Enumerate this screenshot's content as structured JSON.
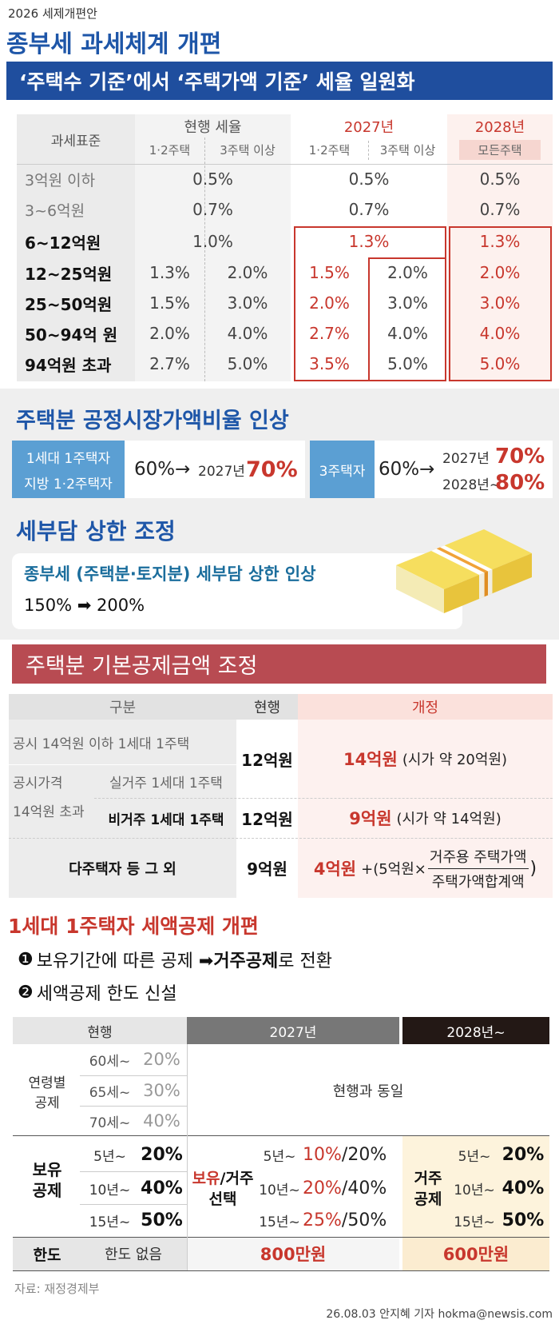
{
  "header": {
    "kicker": "2026 세제개편안",
    "title": "종부세 과세체계 개편"
  },
  "rate_table": {
    "banner": "‘주택수 기준’에서 ‘주택가액 기준’ 세율 일원화",
    "headers": [
      "과세표준",
      "현행 세율",
      "2027년",
      "2028년"
    ],
    "subheaders": [
      "1·2주택",
      "3주택 이상",
      "1·2주택",
      "3주택 이상",
      "모든주택"
    ],
    "rows": [
      [
        "3억원 이하",
        "0.5%",
        "0.5%",
        "0.5%"
      ],
      [
        "3~6억원",
        "0.7%",
        "0.7%",
        "0.7%"
      ],
      [
        "6~12억원",
        "1.0%",
        "1.3%",
        "1.3%"
      ],
      [
        "12~25억원",
        "1.3%",
        "2.0%",
        "1.5%",
        "2.0%",
        "2.0%"
      ],
      [
        "25~50억원",
        "1.5%",
        "3.0%",
        "2.0%",
        "3.0%",
        "3.0%"
      ],
      [
        "50~94억 원",
        "2.0%",
        "4.0%",
        "2.7%",
        "4.0%",
        "4.0%"
      ],
      [
        "94억원 초과",
        "2.7%",
        "5.0%",
        "3.5%",
        "5.0%",
        "5.0%"
      ]
    ]
  },
  "fair_market_ratio": {
    "title": "주택분 공정시장가액비율 인상",
    "group1": {
      "label": [
        "1세대 1주택자",
        "지방 1·2주택자"
      ],
      "from": "60%→",
      "year": "2027년",
      "to": "70%"
    },
    "group2": {
      "label": [
        "3주택자"
      ],
      "from": "60%→",
      "steps": [
        {
          "year": "2027년",
          "to": "70%"
        },
        {
          "year": "2028년~",
          "to": "80%"
        }
      ]
    }
  },
  "burden_cap": {
    "title": "세부담 상한 조정",
    "subtitle": "종부세 (주택분·토지분) 세부담 상한 인상",
    "change": "150% ➡ 200%"
  },
  "deduction_table": {
    "banner": "주택분 기본공제금액 조정",
    "headers": [
      "구분",
      "현행",
      "개정"
    ],
    "group_label": [
      "공시가격",
      "14억원 초과"
    ],
    "shared": {
      "current": "12억원",
      "revised": "14억원",
      "note": "(시가 약 20억원)"
    },
    "rows": [
      {
        "label": "공시 14억원 이하 1세대 1주택"
      },
      {
        "label": "실거주 1세대 1주택"
      },
      {
        "label": "비거주 1세대 1주택",
        "current": "12억원",
        "revised": "9억원",
        "note": "(시가 약 14억원)"
      },
      {
        "label": "다주택자 등 그 외",
        "current": "9억원",
        "revised": "4억원",
        "formula": {
          "prefix": "+(5억원×",
          "numerator": "거주용 주택가액",
          "denominator": "주택가액합계액",
          "suffix": ")"
        }
      }
    ]
  },
  "tax_credit": {
    "title": "1세대 1주택자 세액공제 개편",
    "points": [
      {
        "num": "❶",
        "parts": [
          "보유기간에 따른 공제 ➡ ",
          "거주공제",
          "로 전환"
        ]
      },
      {
        "num": "❷",
        "text": "세액공제 한도 신설"
      }
    ],
    "headers": [
      "현행",
      "2027년",
      "2028년~"
    ],
    "age": {
      "label": [
        "연령별",
        "공제"
      ],
      "rows": [
        [
          "60세~",
          "20%"
        ],
        [
          "65세~",
          "30%"
        ],
        [
          "70세~",
          "40%"
        ]
      ],
      "later": "현행과 동일"
    },
    "holding": {
      "label": [
        "보유",
        "공제"
      ],
      "rows": [
        [
          "5년~",
          "20%"
        ],
        [
          "10년~",
          "40%"
        ],
        [
          "15년~",
          "50%"
        ]
      ],
      "y2027": {
        "label_parts": [
          "보유",
          "/거주"
        ],
        "label_line2": "선택",
        "rows": [
          [
            "5년~",
            "10%",
            "/20%"
          ],
          [
            "10년~",
            "20%",
            "/40%"
          ],
          [
            "15년~",
            "25%",
            "/50%"
          ]
        ]
      },
      "y2028": {
        "label": [
          "거주",
          "공제"
        ],
        "rows": [
          [
            "5년~",
            "20%"
          ],
          [
            "10년~",
            "40%"
          ],
          [
            "15년~",
            "50%"
          ]
        ]
      }
    },
    "limit": {
      "label": "한도",
      "current": "한도 없음",
      "y2027": "800만원",
      "y2028": "600만원"
    }
  },
  "footer": {
    "source": "자료: 재정경제부",
    "credit": "26.08.03 안지혜 기자 hokma@newsis.com"
  }
}
